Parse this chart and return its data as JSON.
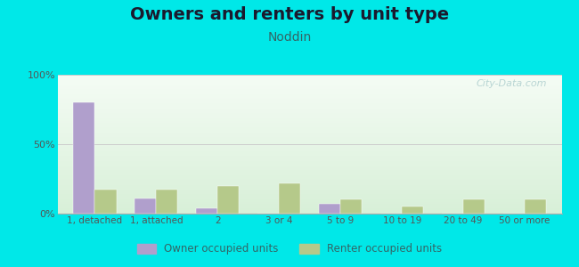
{
  "title": "Owners and renters by unit type",
  "subtitle": "Noddin",
  "categories": [
    "1, detached",
    "1, attached",
    "2",
    "3 or 4",
    "5 to 9",
    "10 to 19",
    "20 to 49",
    "50 or more"
  ],
  "owner_values": [
    80,
    11,
    4,
    0,
    7,
    0,
    0,
    0
  ],
  "renter_values": [
    17,
    17,
    20,
    22,
    10,
    5,
    10,
    10
  ],
  "owner_color": "#b09fcc",
  "renter_color": "#b5c98a",
  "bg_color": "#00e8e8",
  "chart_bg_top": "#f5fcf5",
  "chart_bg_bottom": "#d8f0d8",
  "title_fontsize": 14,
  "subtitle_fontsize": 10,
  "ylim": [
    0,
    100
  ],
  "yticks": [
    0,
    50,
    100
  ],
  "ytick_labels": [
    "0%",
    "50%",
    "100%"
  ],
  "watermark": "City-Data.com",
  "bar_width": 0.35,
  "legend_owner": "Owner occupied units",
  "legend_renter": "Renter occupied units"
}
